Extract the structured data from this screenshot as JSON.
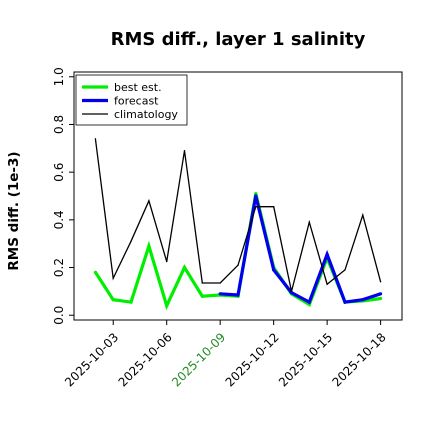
{
  "chart_data": {
    "type": "line",
    "title": "RMS diff., layer 1 salinity",
    "ylabel": "RMS diff. (1e-3)",
    "xlabel": "",
    "ylim": [
      -0.02,
      1.02
    ],
    "y_ticks": [
      0.0,
      0.2,
      0.4,
      0.6,
      0.8,
      1.0
    ],
    "y_tick_labels": [
      "0.0",
      "0.2",
      "0.4",
      "0.6",
      "0.8",
      "1.0"
    ],
    "x_tick_labels": [
      "2025-10-03",
      "2025-10-06",
      "2025-10-09",
      "2025-10-12",
      "2025-10-15",
      "2025-10-18"
    ],
    "highlight_tick_label": "2025-10-09",
    "highlight_color": "#228b22",
    "legend_position": "upper left",
    "grid": false,
    "series": [
      {
        "name": "best est.",
        "color": "#00ee00",
        "x": [
          "2025-10-02",
          "2025-10-03",
          "2025-10-04",
          "2025-10-05",
          "2025-10-06",
          "2025-10-07",
          "2025-10-08",
          "2025-10-09",
          "2025-10-10",
          "2025-10-11",
          "2025-10-12",
          "2025-10-13",
          "2025-10-14",
          "2025-10-15",
          "2025-10-16",
          "2025-10-17",
          "2025-10-18"
        ],
        "values": [
          0.18,
          0.065,
          0.055,
          0.29,
          0.04,
          0.2,
          0.08,
          0.085,
          0.08,
          0.51,
          0.2,
          0.09,
          0.045,
          0.24,
          0.055,
          0.06,
          0.07
        ]
      },
      {
        "name": "forecast",
        "color": "#0000ee",
        "x": [
          "2025-10-09",
          "2025-10-10",
          "2025-10-11",
          "2025-10-12",
          "2025-10-13",
          "2025-10-14",
          "2025-10-15",
          "2025-10-16",
          "2025-10-17",
          "2025-10-18"
        ],
        "values": [
          0.09,
          0.085,
          0.5,
          0.19,
          0.095,
          0.055,
          0.255,
          0.055,
          0.065,
          0.09
        ]
      },
      {
        "name": "climatology",
        "color": "#000000",
        "x": [
          "2025-10-02",
          "2025-10-03",
          "2025-10-04",
          "2025-10-05",
          "2025-10-06",
          "2025-10-07",
          "2025-10-08",
          "2025-10-09",
          "2025-10-10",
          "2025-10-11",
          "2025-10-12",
          "2025-10-13",
          "2025-10-14",
          "2025-10-15",
          "2025-10-16",
          "2025-10-17",
          "2025-10-18"
        ],
        "values": [
          0.74,
          0.155,
          0.31,
          0.48,
          0.225,
          0.69,
          0.135,
          0.135,
          0.21,
          0.455,
          0.455,
          0.1,
          0.39,
          0.13,
          0.19,
          0.42,
          0.14
        ]
      }
    ]
  }
}
